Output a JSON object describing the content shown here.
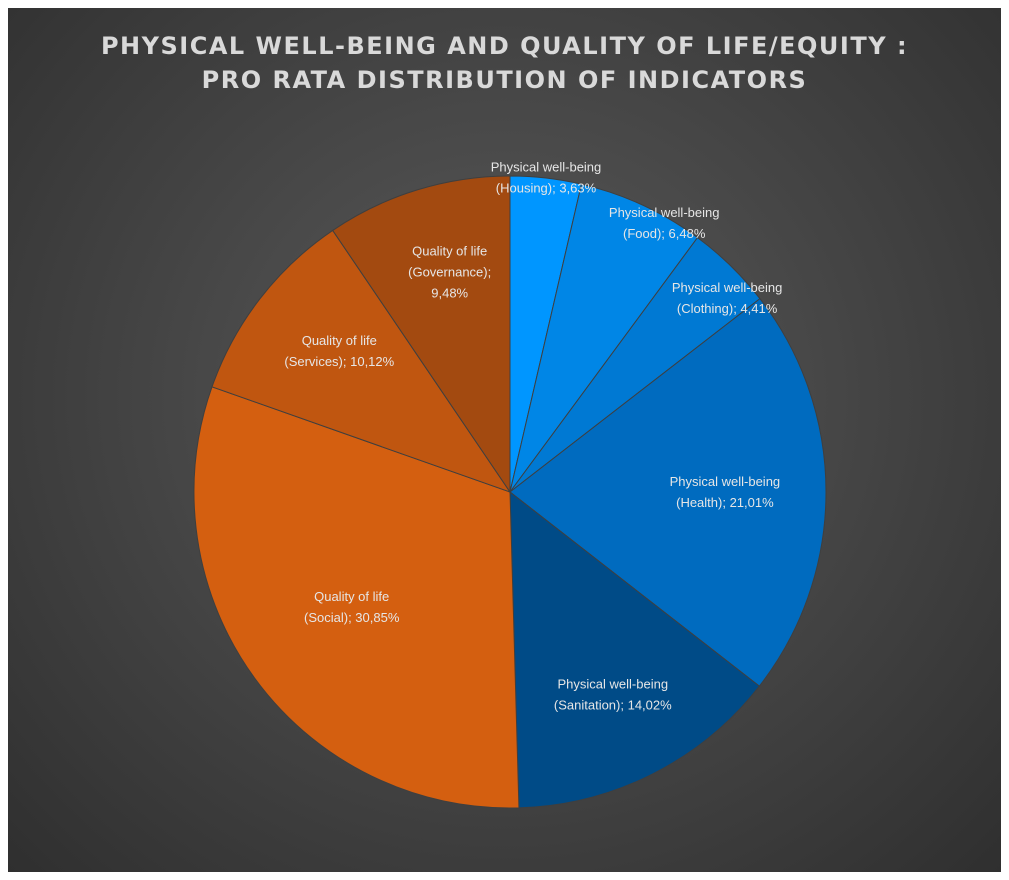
{
  "chart_data": {
    "type": "pie",
    "title_lines": [
      "PHYSICAL WELL-BEING AND QUALITY OF LIFE/EQUITY :",
      "PRO RATA DISTRIBUTION OF INDICATORS"
    ],
    "slices": [
      {
        "label": "Physical well-being (Housing)",
        "value": 3.63,
        "label_lines": [
          "Physical well-being",
          "(Housing); 3,63%"
        ],
        "color": "#0096ff"
      },
      {
        "label": "Physical well-being (Food)",
        "value": 6.48,
        "label_lines": [
          "Physical well-being",
          "(Food); 6,48%"
        ],
        "color": "#0086e6"
      },
      {
        "label": "Physical well-being (Clothing)",
        "value": 4.41,
        "label_lines": [
          "Physical well-being",
          "(Clothing); 4,41%"
        ],
        "color": "#0079d3"
      },
      {
        "label": "Physical well-being (Health)",
        "value": 21.01,
        "label_lines": [
          "Physical well-being",
          "(Health); 21,01%"
        ],
        "color": "#006bbf"
      },
      {
        "label": "Physical well-being (Sanitation)",
        "value": 14.02,
        "label_lines": [
          "Physical well-being",
          "(Sanitation); 14,02%"
        ],
        "color": "#004b87"
      },
      {
        "label": "Quality of life (Social)",
        "value": 30.85,
        "label_lines": [
          "Quality of life",
          "(Social); 30,85%"
        ],
        "color": "#d45f10"
      },
      {
        "label": "Quality of life (Services)",
        "value": 10.12,
        "label_lines": [
          "Quality of life",
          "(Services); 10,12%"
        ],
        "color": "#c05610"
      },
      {
        "label": "Quality of life (Governance)",
        "value": 9.48,
        "label_lines": [
          "Quality of life",
          "(Governance);",
          "9,48%"
        ],
        "color": "#a34a10"
      }
    ],
    "start_angle": "12 o'clock",
    "direction": "clockwise",
    "legend": "none"
  }
}
